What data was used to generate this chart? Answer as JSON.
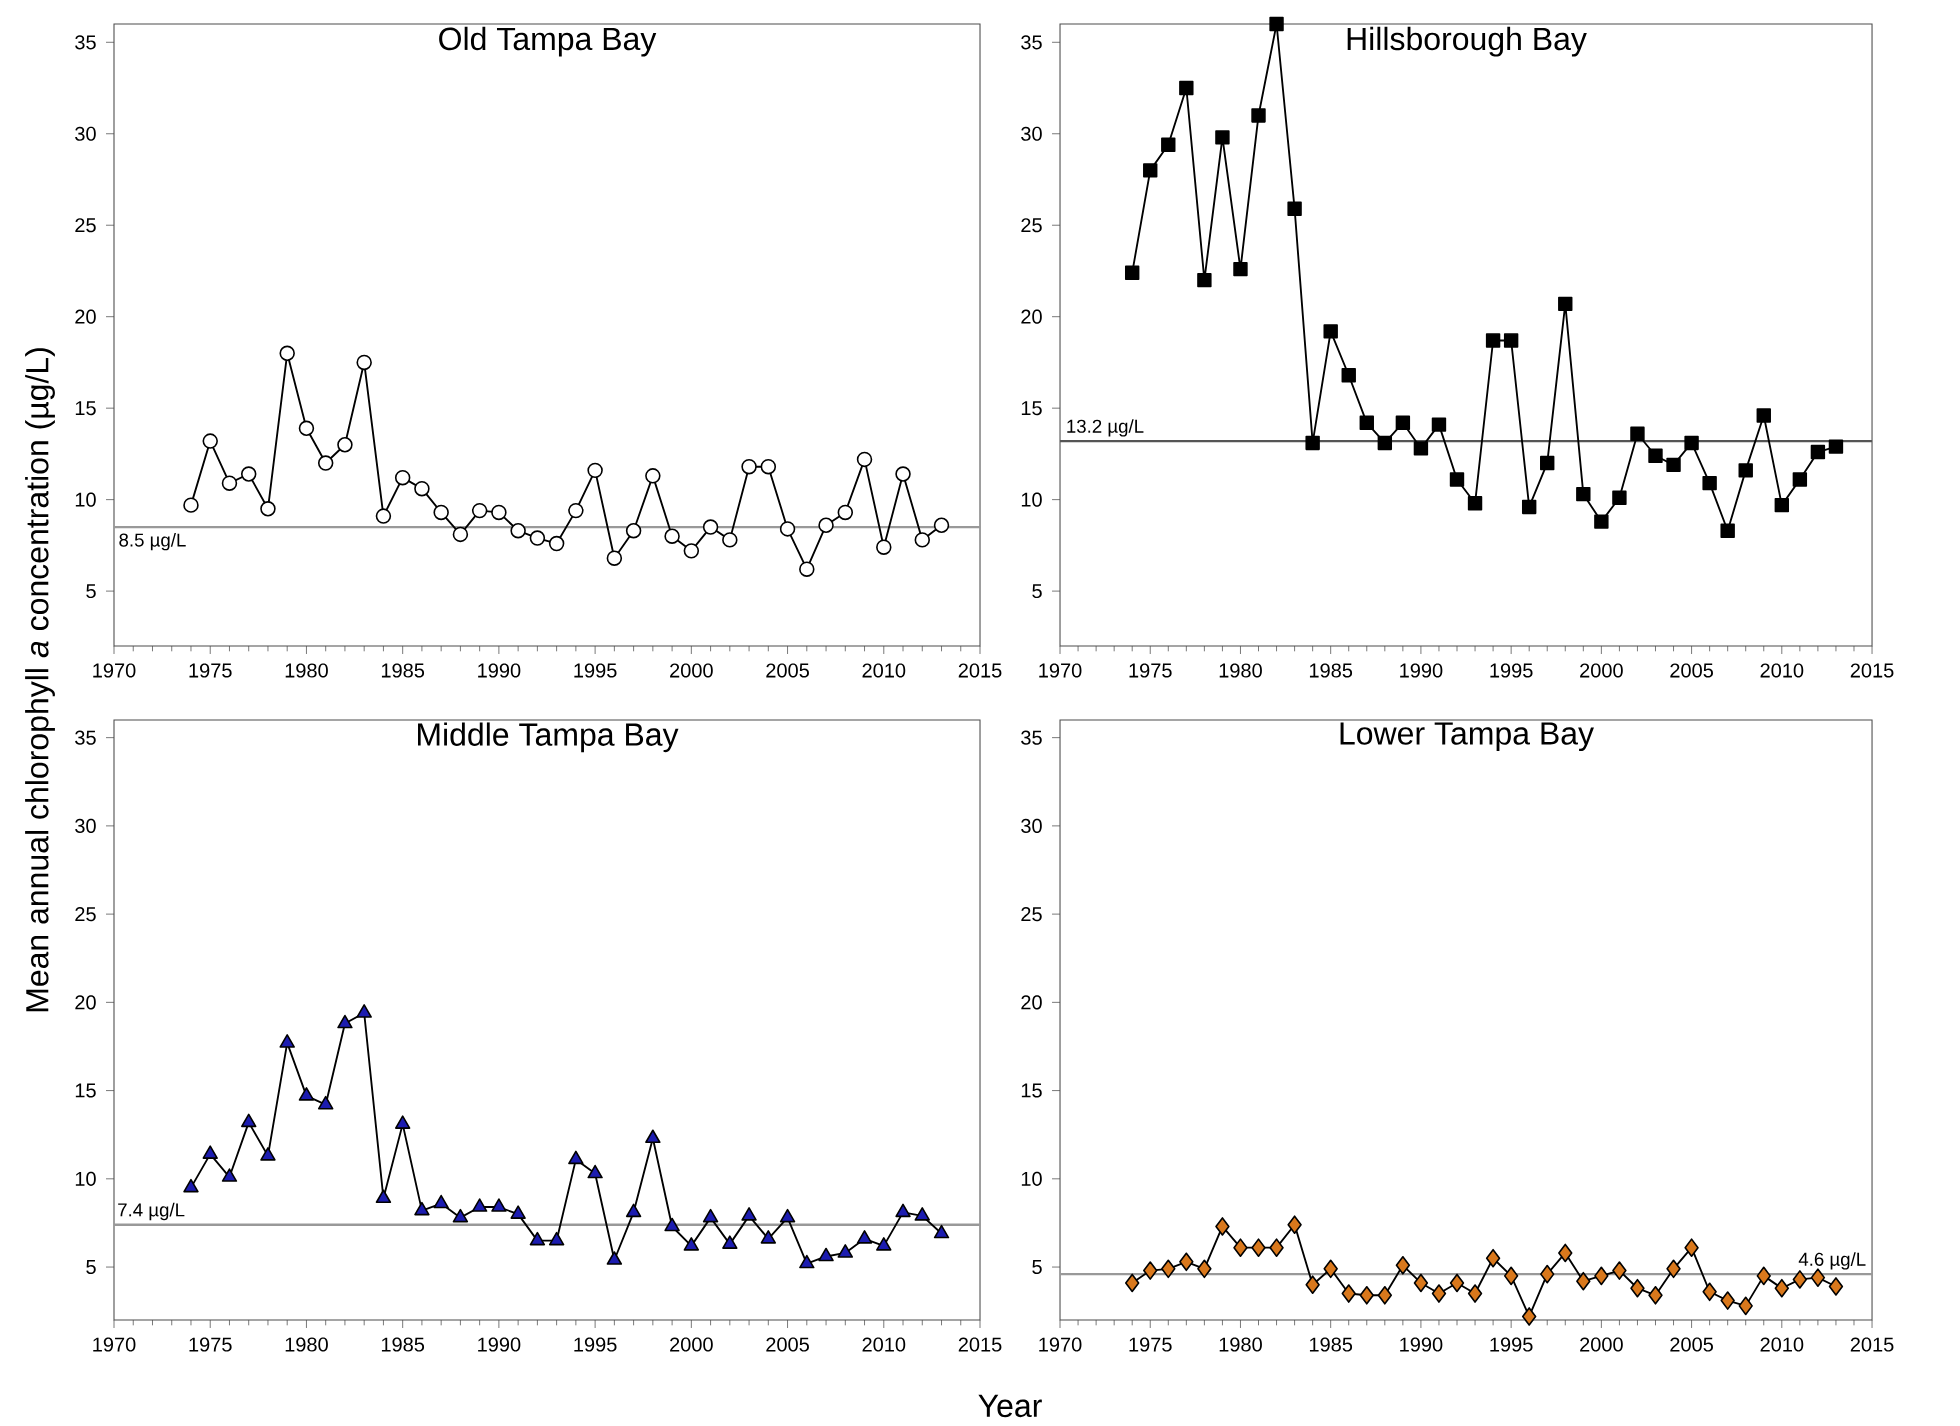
{
  "chart_data": [
    {
      "type": "line",
      "title": "Old Tampa Bay",
      "ylabel": "Mean annual chlorophyll *a* concentration (µg/L)",
      "marker": "circle",
      "x": [
        1974,
        1975,
        1976,
        1977,
        1978,
        1979,
        1980,
        1981,
        1982,
        1983,
        1984,
        1985,
        1986,
        1987,
        1988,
        1989,
        1990,
        1991,
        1992,
        1993,
        1994,
        1995,
        1996,
        1997,
        1998,
        1999,
        2000,
        2001,
        2002,
        2003,
        2004,
        2005,
        2006,
        2007,
        2008,
        2009,
        2010,
        2011,
        2012,
        2013
      ],
      "series": [
        {
          "color": "#ffffff",
          "values": [
            9.7,
            13.2,
            10.9,
            11.4,
            9.5,
            18.0,
            13.9,
            12.0,
            13.0,
            17.5,
            9.1,
            11.2,
            10.6,
            9.3,
            8.1,
            9.4,
            9.3,
            8.3,
            7.9,
            7.6,
            9.4,
            11.6,
            6.8,
            8.3,
            11.3,
            8.0,
            7.2,
            8.5,
            7.8,
            11.8,
            11.8,
            8.4,
            6.2,
            8.6,
            9.3,
            12.2,
            7.4,
            11.4,
            7.8,
            8.6
          ]
        }
      ],
      "xlim": [
        1970,
        2015
      ],
      "xticks": [
        1970,
        1975,
        1980,
        1985,
        1990,
        1995,
        2000,
        2005,
        2010,
        2015
      ],
      "ylim": [
        2,
        36
      ],
      "yticks": [
        5,
        10,
        15,
        20,
        25,
        30,
        35
      ],
      "ref_lines": [
        {
          "axis": "y",
          "value": 8.5,
          "label": "8.5 µg/L",
          "color": "#999999"
        }
      ]
    },
    {
      "type": "line",
      "title": "Hillsborough Bay",
      "marker": "square",
      "x": [
        1974,
        1975,
        1976,
        1977,
        1978,
        1979,
        1980,
        1981,
        1982,
        1983,
        1984,
        1985,
        1986,
        1987,
        1988,
        1989,
        1990,
        1991,
        1992,
        1993,
        1994,
        1995,
        1996,
        1997,
        1998,
        1999,
        2000,
        2001,
        2002,
        2003,
        2004,
        2005,
        2006,
        2007,
        2008,
        2009,
        2010,
        2011,
        2012,
        2013
      ],
      "series": [
        {
          "color": "#000000",
          "values": [
            22.4,
            28.0,
            29.4,
            32.5,
            22.0,
            29.8,
            22.6,
            31.0,
            36.0,
            25.9,
            13.1,
            19.2,
            16.8,
            14.2,
            13.1,
            14.2,
            12.8,
            14.1,
            11.1,
            9.8,
            18.7,
            18.7,
            9.6,
            12.0,
            20.7,
            10.3,
            8.8,
            10.1,
            13.6,
            12.4,
            11.9,
            13.1,
            10.9,
            8.3,
            11.6,
            14.6,
            9.7,
            11.1,
            12.6,
            12.9
          ]
        }
      ],
      "xlim": [
        1970,
        2015
      ],
      "xticks": [
        1970,
        1975,
        1980,
        1985,
        1990,
        1995,
        2000,
        2005,
        2010,
        2015
      ],
      "ylim": [
        2,
        36
      ],
      "yticks": [
        5,
        10,
        15,
        20,
        25,
        30,
        35
      ],
      "ref_lines": [
        {
          "axis": "y",
          "value": 13.2,
          "label": "13.2 µg/L",
          "color": "#555555"
        }
      ]
    },
    {
      "type": "line",
      "title": "Middle Tampa Bay",
      "xlabel": "Year",
      "marker": "triangle",
      "x": [
        1974,
        1975,
        1976,
        1977,
        1978,
        1979,
        1980,
        1981,
        1982,
        1983,
        1984,
        1985,
        1986,
        1987,
        1988,
        1989,
        1990,
        1991,
        1992,
        1993,
        1994,
        1995,
        1996,
        1997,
        1998,
        1999,
        2000,
        2001,
        2002,
        2003,
        2004,
        2005,
        2006,
        2007,
        2008,
        2009,
        2010,
        2011,
        2012,
        2013
      ],
      "series": [
        {
          "color": "#1c1cb0",
          "values": [
            9.5,
            11.4,
            10.1,
            13.2,
            11.3,
            17.7,
            14.7,
            14.2,
            18.8,
            19.4,
            8.9,
            13.1,
            8.2,
            8.6,
            7.8,
            8.4,
            8.4,
            8.0,
            6.5,
            6.5,
            11.1,
            10.3,
            5.4,
            8.1,
            12.3,
            7.3,
            6.2,
            7.8,
            6.3,
            7.9,
            6.6,
            7.8,
            5.2,
            5.6,
            5.8,
            6.6,
            6.2,
            8.1,
            7.9,
            6.9
          ]
        }
      ],
      "xlim": [
        1970,
        2015
      ],
      "xticks": [
        1970,
        1975,
        1980,
        1985,
        1990,
        1995,
        2000,
        2005,
        2010,
        2015
      ],
      "ylim": [
        2,
        36
      ],
      "yticks": [
        5,
        10,
        15,
        20,
        25,
        30,
        35
      ],
      "ref_lines": [
        {
          "axis": "y",
          "value": 7.4,
          "label": "7.4 µg/L",
          "color": "#999999"
        }
      ]
    },
    {
      "type": "line",
      "title": "Lower Tampa Bay",
      "marker": "diamond",
      "x": [
        1974,
        1975,
        1976,
        1977,
        1978,
        1979,
        1980,
        1981,
        1982,
        1983,
        1984,
        1985,
        1986,
        1987,
        1988,
        1989,
        1990,
        1991,
        1992,
        1993,
        1994,
        1995,
        1996,
        1997,
        1998,
        1999,
        2000,
        2001,
        2002,
        2003,
        2004,
        2005,
        2006,
        2007,
        2008,
        2009,
        2010,
        2011,
        2012,
        2013
      ],
      "series": [
        {
          "color": "#d9781c",
          "values": [
            4.1,
            4.8,
            4.9,
            5.3,
            4.9,
            7.3,
            6.1,
            6.1,
            6.1,
            7.4,
            4.0,
            4.9,
            3.5,
            3.4,
            3.4,
            5.1,
            4.1,
            3.5,
            4.1,
            3.5,
            5.5,
            4.5,
            2.2,
            4.6,
            5.8,
            4.2,
            4.5,
            4.8,
            3.8,
            3.4,
            4.9,
            6.1,
            3.6,
            3.1,
            2.8,
            4.5,
            3.8,
            4.3,
            4.4,
            3.9
          ]
        }
      ],
      "xlim": [
        1970,
        2015
      ],
      "xticks": [
        1970,
        1975,
        1980,
        1985,
        1990,
        1995,
        2000,
        2005,
        2010,
        2015
      ],
      "ylim": [
        2,
        36
      ],
      "yticks": [
        5,
        10,
        15,
        20,
        25,
        30,
        35
      ],
      "ref_lines": [
        {
          "axis": "y",
          "value": 4.6,
          "label": "4.6 µg/L",
          "color": "#999999"
        }
      ]
    }
  ]
}
